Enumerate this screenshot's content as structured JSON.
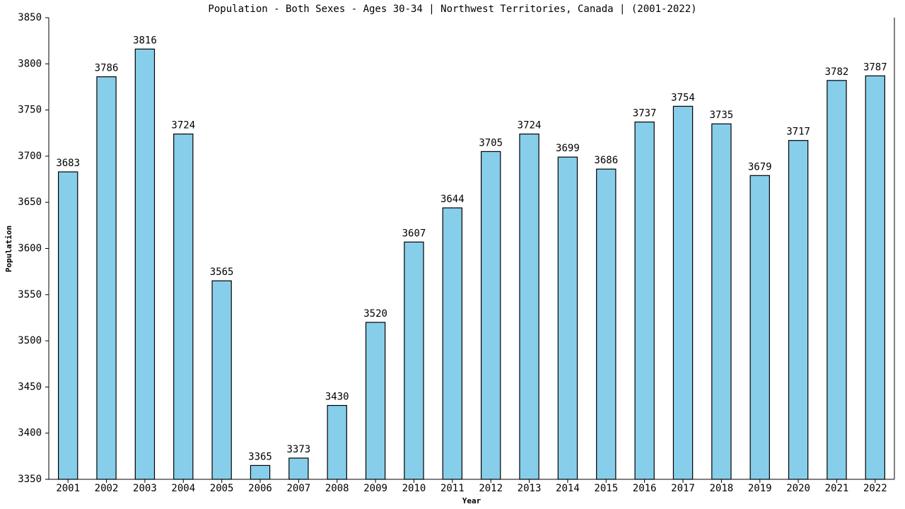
{
  "chart_data": {
    "type": "bar",
    "title": "Population - Both Sexes - Ages 30-34 | Northwest Territories, Canada |  (2001-2022)",
    "x_label": "Year",
    "y_label": "Population",
    "categories": [
      "2001",
      "2002",
      "2003",
      "2004",
      "2005",
      "2006",
      "2007",
      "2008",
      "2009",
      "2010",
      "2011",
      "2012",
      "2013",
      "2014",
      "2015",
      "2016",
      "2017",
      "2018",
      "2019",
      "2020",
      "2021",
      "2022"
    ],
    "values": [
      3683,
      3786,
      3816,
      3724,
      3565,
      3365,
      3373,
      3430,
      3520,
      3607,
      3644,
      3705,
      3724,
      3699,
      3686,
      3737,
      3754,
      3735,
      3679,
      3717,
      3782,
      3787
    ],
    "color": "#87ceeb",
    "ylim": [
      3350,
      3850
    ],
    "yticks": [
      3350,
      3400,
      3450,
      3500,
      3550,
      3600,
      3650,
      3700,
      3750,
      3800,
      3850
    ],
    "grid": false
  }
}
